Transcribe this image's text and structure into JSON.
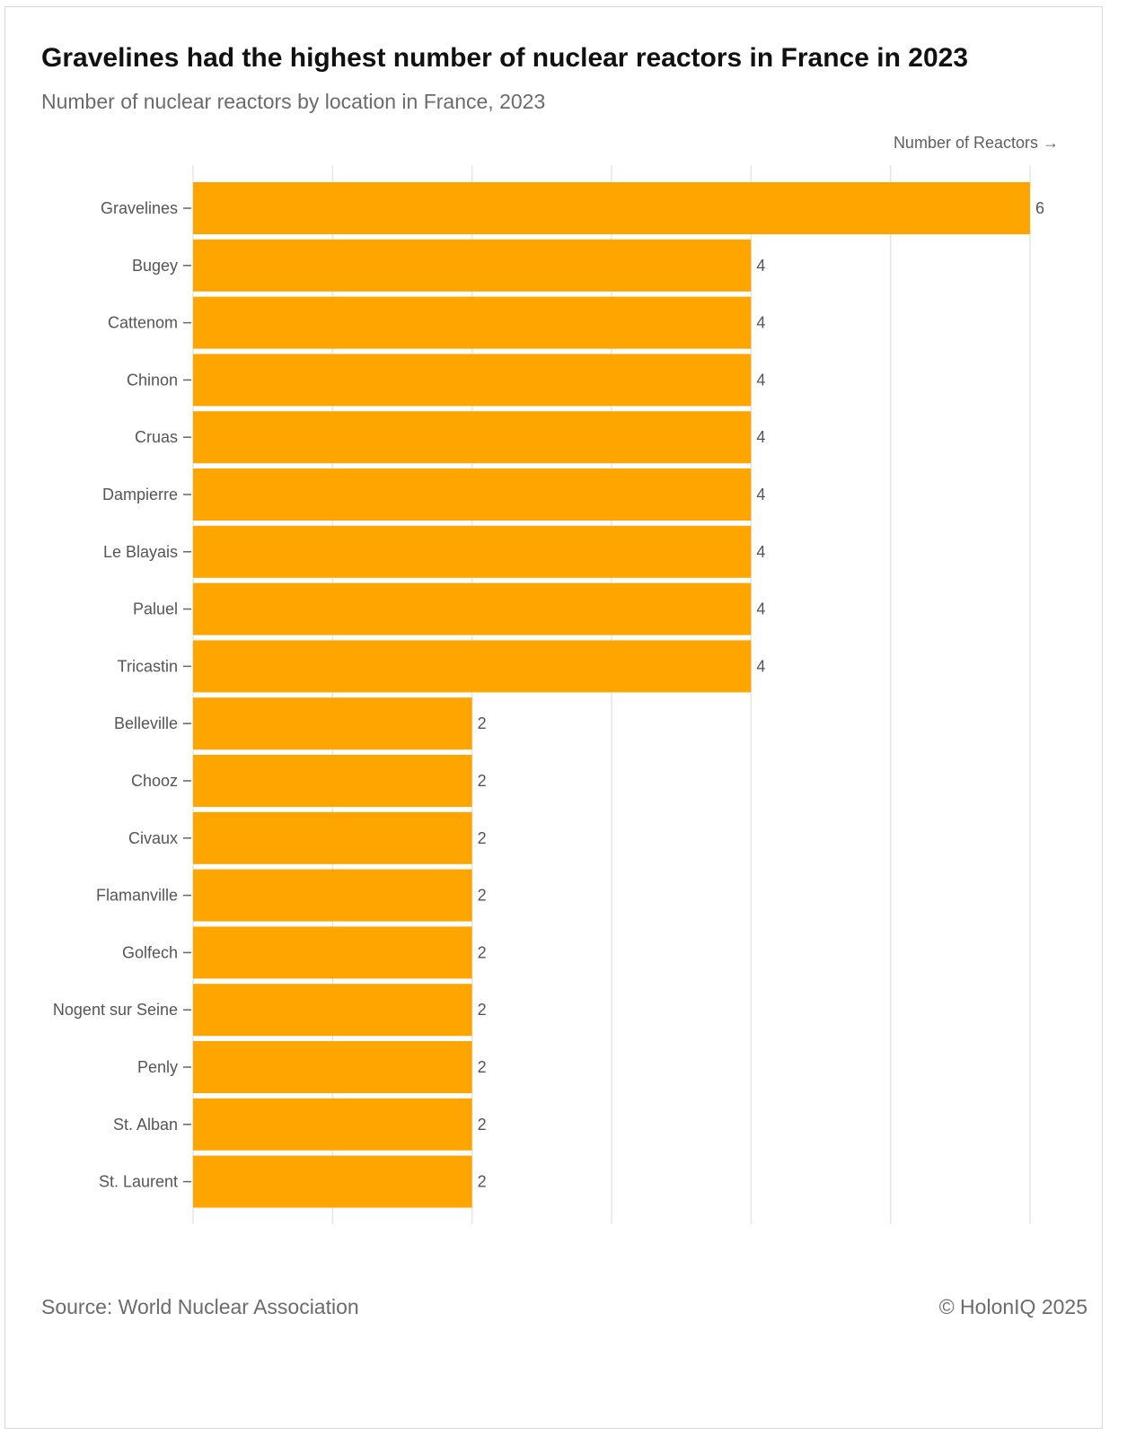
{
  "header": {
    "title": "Gravelines had the highest number of nuclear reactors in France in 2023",
    "subtitle": "Number of nuclear reactors by location in France, 2023"
  },
  "footer": {
    "source": "Source: World Nuclear Association",
    "copyright": "© HolonIQ 2025"
  },
  "colors": {
    "bar": "#FFA500",
    "grid": "#e6e6e6",
    "tick": "#666666",
    "label": "#555555"
  },
  "chart_data": {
    "type": "bar",
    "orientation": "horizontal",
    "title": "Gravelines had the highest number of nuclear reactors in France in 2023",
    "subtitle": "Number of nuclear reactors by location in France, 2023",
    "xlabel": "Number of Reactors →",
    "ylabel": "",
    "xlim": [
      0,
      6
    ],
    "grid": true,
    "data_labels": true,
    "categories": [
      "Gravelines",
      "Bugey",
      "Cattenom",
      "Chinon",
      "Cruas",
      "Dampierre",
      "Le Blayais",
      "Paluel",
      "Tricastin",
      "Belleville",
      "Chooz",
      "Civaux",
      "Flamanville",
      "Golfech",
      "Nogent sur Seine",
      "Penly",
      "St. Alban",
      "St. Laurent"
    ],
    "values": [
      6,
      4,
      4,
      4,
      4,
      4,
      4,
      4,
      4,
      2,
      2,
      2,
      2,
      2,
      2,
      2,
      2,
      2
    ]
  }
}
